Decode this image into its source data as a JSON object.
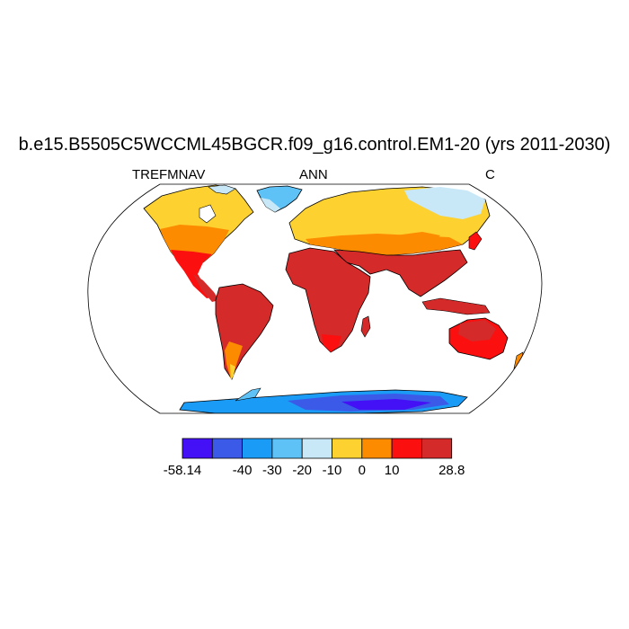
{
  "title": "b.e15.B5505C5WCCML45BGCR.f09_g16.control.EM1-20 (yrs 2011-2030)",
  "left_label": "TREFMNAV",
  "center_label": "ANN",
  "right_label": "C",
  "colorbar": {
    "colors": [
      "#4410f5",
      "#3b5ae8",
      "#1a9bf6",
      "#5ec2f7",
      "#c8e8f7",
      "#fdd130",
      "#fd8b00",
      "#fb0f0f",
      "#d42a2a"
    ],
    "labels": [
      "-58.14",
      "-40",
      "-30",
      "-20",
      "-10",
      "0",
      "10",
      "28.8"
    ],
    "label_positions": [
      0,
      2,
      3,
      4,
      5,
      6,
      7,
      9
    ]
  },
  "legend_colors": {
    "ocean": "#ffffff",
    "coast": "#000000"
  }
}
